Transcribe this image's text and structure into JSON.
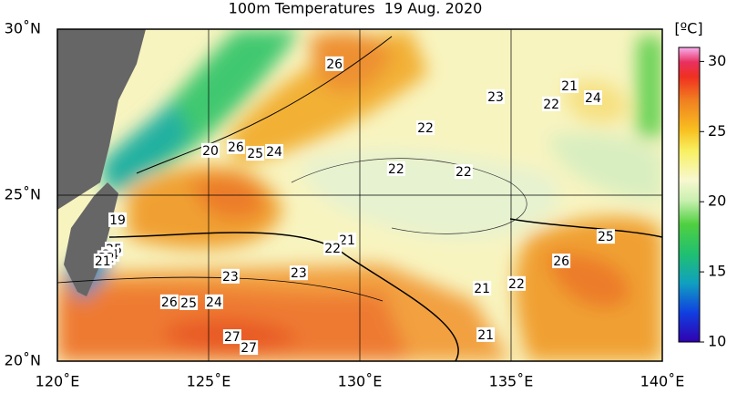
{
  "title": "100m Temperatures  19 Aug. 2020",
  "map": {
    "lonlim": [
      120,
      140
    ],
    "latlim": [
      20,
      30
    ],
    "lon_ticks": [
      {
        "value": 120,
        "label": "120˚E"
      },
      {
        "value": 125,
        "label": "125˚E"
      },
      {
        "value": 130,
        "label": "130˚E"
      },
      {
        "value": 135,
        "label": "135˚E"
      },
      {
        "value": 140,
        "label": "140˚E"
      }
    ],
    "lat_ticks": [
      {
        "value": 20,
        "label": "20˚N"
      },
      {
        "value": 25,
        "label": "25˚N"
      },
      {
        "value": 30,
        "label": "30˚N"
      }
    ],
    "contour_labels": [
      {
        "value": 26,
        "lon": 129.16,
        "lat": 28.96
      },
      {
        "value": 23,
        "lon": 134.49,
        "lat": 27.97
      },
      {
        "value": 21,
        "lon": 136.93,
        "lat": 28.3
      },
      {
        "value": 24,
        "lon": 137.71,
        "lat": 27.94
      },
      {
        "value": 22,
        "lon": 136.33,
        "lat": 27.75
      },
      {
        "value": 22,
        "lon": 132.17,
        "lat": 27.03
      },
      {
        "value": 20,
        "lon": 125.06,
        "lat": 26.35
      },
      {
        "value": 26,
        "lon": 125.9,
        "lat": 26.46
      },
      {
        "value": 25,
        "lon": 126.54,
        "lat": 26.26
      },
      {
        "value": 24,
        "lon": 127.17,
        "lat": 26.32
      },
      {
        "value": 22,
        "lon": 131.2,
        "lat": 25.8
      },
      {
        "value": 22,
        "lon": 133.43,
        "lat": 25.71
      },
      {
        "value": 19,
        "lon": 121.99,
        "lat": 24.26
      },
      {
        "value": 25,
        "lon": 121.87,
        "lat": 23.38
      },
      {
        "value": 24,
        "lon": 121.75,
        "lat": 23.22
      },
      {
        "value": 22,
        "lon": 121.62,
        "lat": 23.12
      },
      {
        "value": 21,
        "lon": 121.5,
        "lat": 23.02
      },
      {
        "value": 21,
        "lon": 129.58,
        "lat": 23.65
      },
      {
        "value": 22,
        "lon": 129.1,
        "lat": 23.41
      },
      {
        "value": 25,
        "lon": 138.13,
        "lat": 23.76
      },
      {
        "value": 26,
        "lon": 136.66,
        "lat": 23.02
      },
      {
        "value": 23,
        "lon": 125.72,
        "lat": 22.56
      },
      {
        "value": 23,
        "lon": 127.98,
        "lat": 22.66
      },
      {
        "value": 22,
        "lon": 135.18,
        "lat": 22.34
      },
      {
        "value": 21,
        "lon": 134.04,
        "lat": 22.2
      },
      {
        "value": 26,
        "lon": 123.7,
        "lat": 21.79
      },
      {
        "value": 25,
        "lon": 124.34,
        "lat": 21.76
      },
      {
        "value": 24,
        "lon": 125.18,
        "lat": 21.79
      },
      {
        "value": 27,
        "lon": 125.78,
        "lat": 20.74
      },
      {
        "value": 27,
        "lon": 126.33,
        "lat": 20.41
      },
      {
        "value": 21,
        "lon": 134.16,
        "lat": 20.8
      }
    ]
  },
  "colorbar": {
    "title": "[ºC]",
    "range": [
      10,
      31
    ],
    "ticks": [
      10,
      15,
      20,
      25,
      30
    ]
  }
}
